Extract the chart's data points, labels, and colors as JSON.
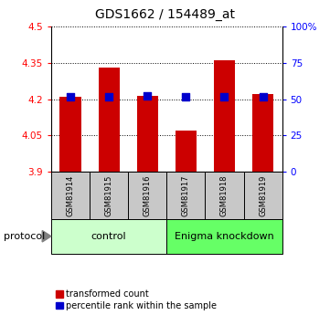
{
  "title": "GDS1662 / 154489_at",
  "samples": [
    "GSM81914",
    "GSM81915",
    "GSM81916",
    "GSM81917",
    "GSM81918",
    "GSM81919"
  ],
  "red_values": [
    4.21,
    4.33,
    4.215,
    4.07,
    4.36,
    4.22
  ],
  "blue_values": [
    4.212,
    4.212,
    4.215,
    4.212,
    4.212,
    4.212
  ],
  "ylim_left": [
    3.9,
    4.5
  ],
  "yticks_left": [
    3.9,
    4.05,
    4.2,
    4.35,
    4.5
  ],
  "ytick_labels_left": [
    "3.9",
    "4.05",
    "4.2",
    "4.35",
    "4.5"
  ],
  "yticks_right": [
    0,
    25,
    50,
    75,
    100
  ],
  "ytick_labels_right": [
    "0",
    "25",
    "50",
    "75",
    "100%"
  ],
  "bar_bottom": 3.9,
  "bar_color": "#cc0000",
  "blue_color": "#0000cc",
  "control_label": "control",
  "knockdown_label": "Enigma knockdown",
  "protocol_label": "protocol",
  "legend_red": "transformed count",
  "legend_blue": "percentile rank within the sample",
  "control_color": "#ccffcc",
  "knockdown_color": "#66ff66",
  "sample_box_color": "#c8c8c8",
  "bar_width": 0.55,
  "n_control": 3,
  "n_knockdown": 3
}
